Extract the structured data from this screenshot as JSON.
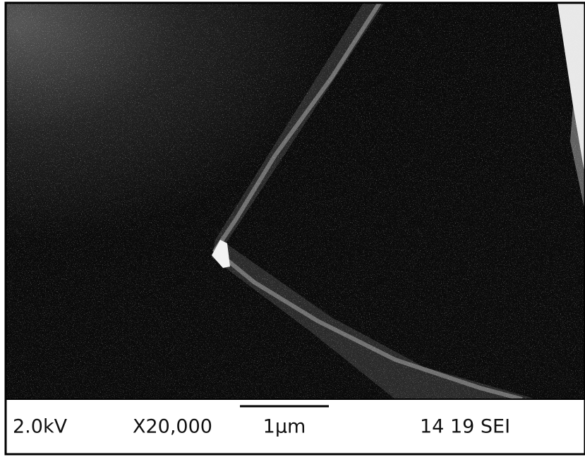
{
  "info_bar": {
    "voltage": "2.0kV",
    "magnification": "X20,000",
    "scale": "1µm",
    "label": "14 19 SEI"
  }
}
